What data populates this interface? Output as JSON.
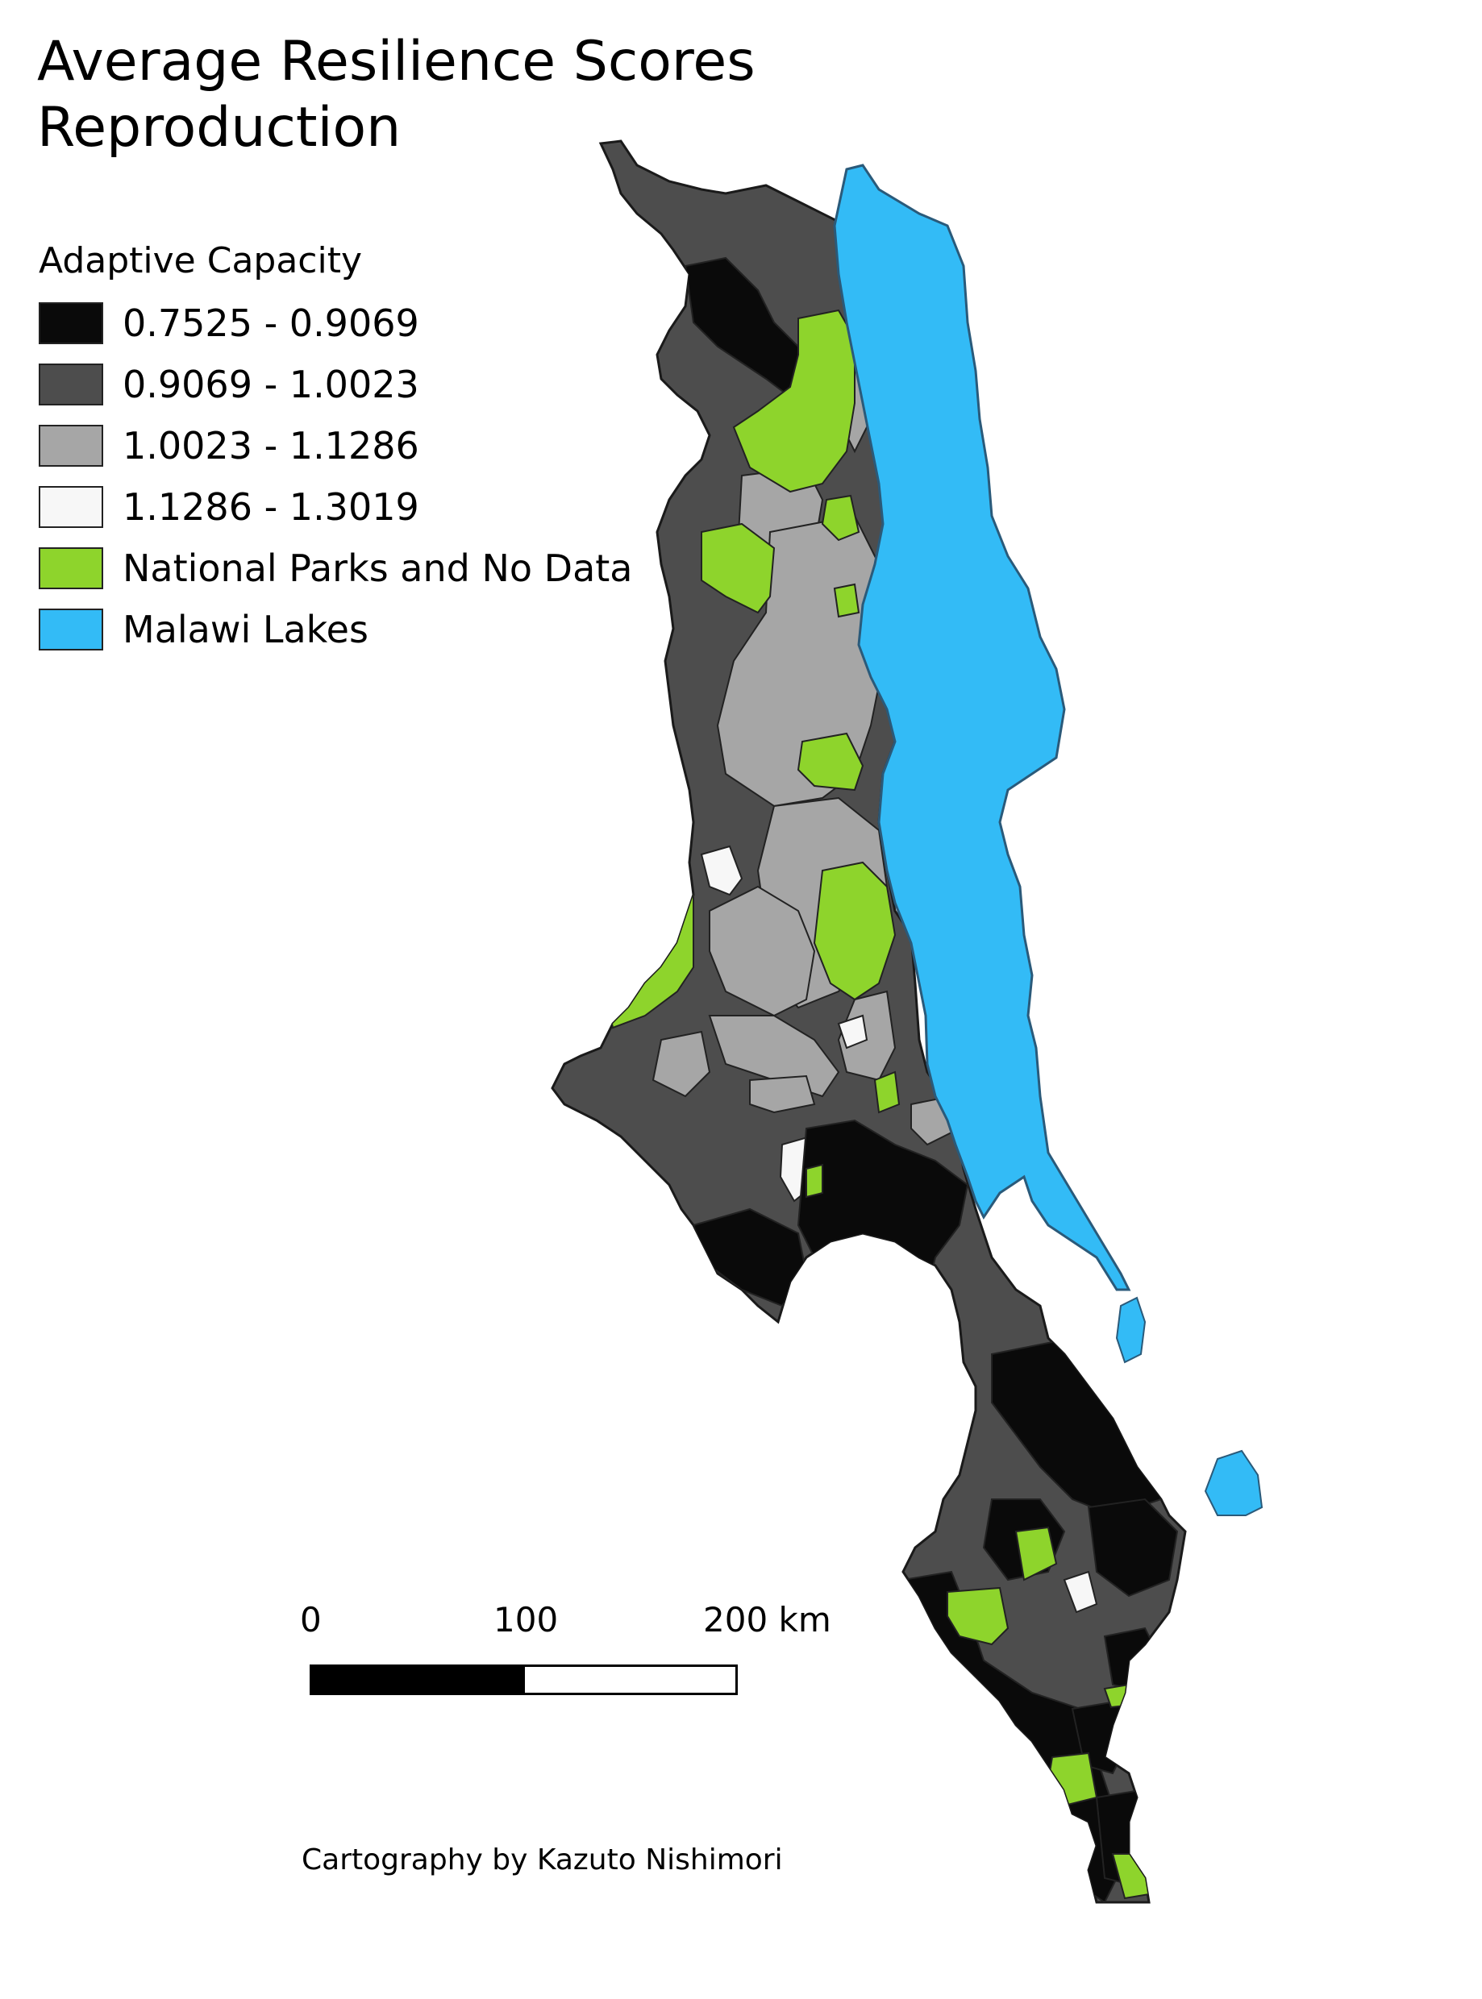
{
  "title": {
    "line1": "Average Resilience Scores",
    "line2": "Reproduction"
  },
  "legend": {
    "title": "Adaptive Capacity",
    "items": [
      {
        "label": "0.7525 - 0.9069",
        "color": "#0a0a0a"
      },
      {
        "label": "0.9069 - 1.0023",
        "color": "#4d4d4d"
      },
      {
        "label": "1.0023 - 1.1286",
        "color": "#a6a6a6"
      },
      {
        "label": "1.1286 - 1.3019",
        "color": "#f7f7f7"
      },
      {
        "label": "National Parks and No Data",
        "color": "#8ed42c"
      },
      {
        "label": "Malawi Lakes",
        "color": "#33bbf6"
      }
    ]
  },
  "scale_bar": {
    "labels": [
      "0",
      "100",
      "200 km"
    ]
  },
  "credit": "Cartography by Kazuto Nishimori"
}
